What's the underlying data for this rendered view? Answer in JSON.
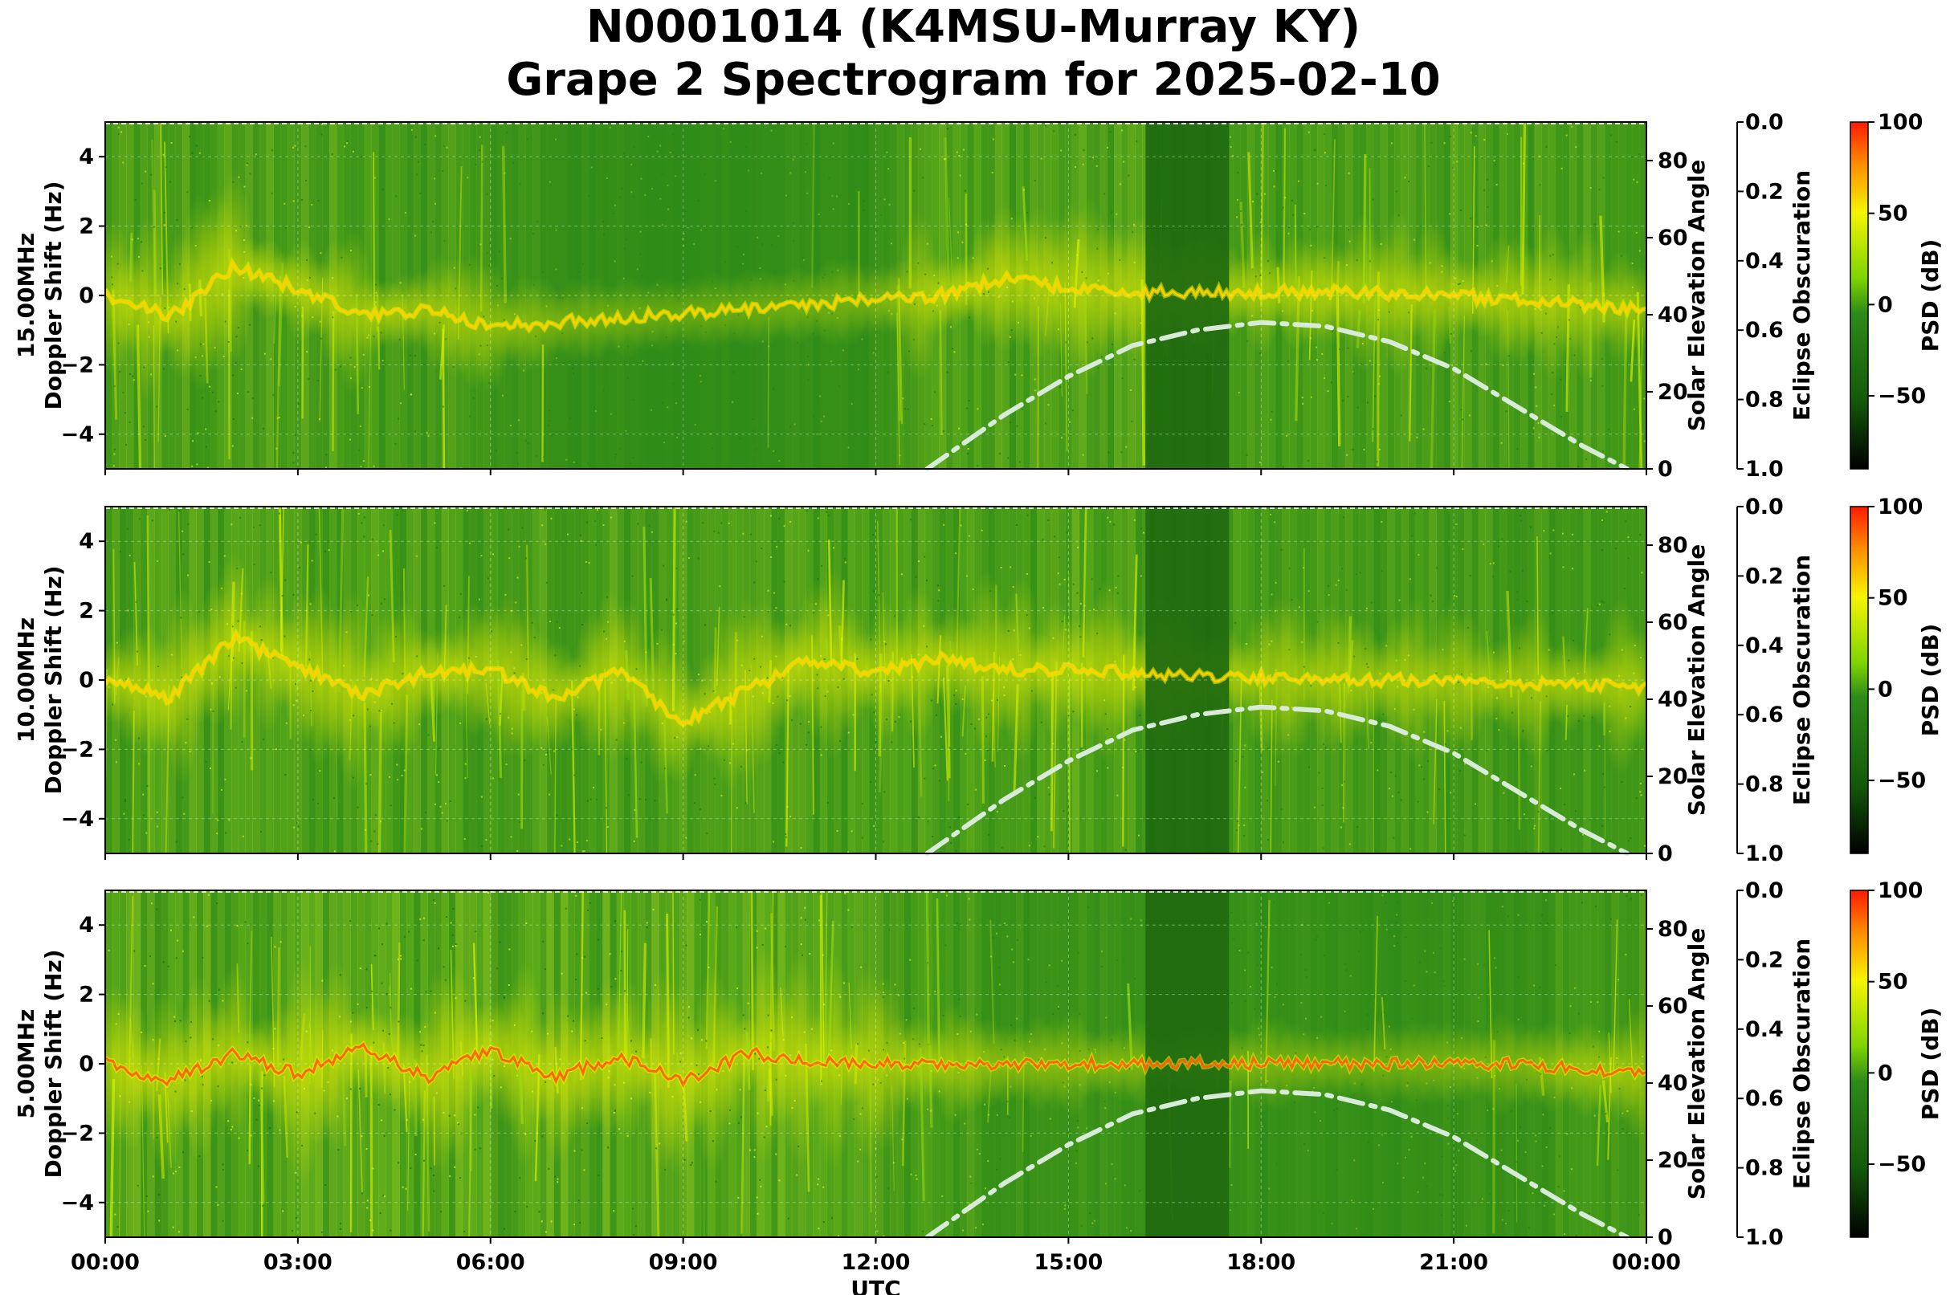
{
  "title_line1": "N0001014 (K4MSU-Murray KY)",
  "title_line2": "Grape 2 Spectrogram for 2025-02-10",
  "colors": {
    "background_green": "#2e8b18",
    "dark_band": "#1f6a0f",
    "yellow": "#f0f000",
    "red": "#ff2000",
    "solar_curve": "#d8ead8"
  },
  "chart_data": {
    "type": "heatmap",
    "xlabel": "UTC",
    "x_ticks": [
      "00:00",
      "03:00",
      "06:00",
      "09:00",
      "12:00",
      "15:00",
      "18:00",
      "21:00",
      "00:00"
    ],
    "xlim_hours": [
      0,
      24
    ],
    "ylim": [
      -5,
      5
    ],
    "y_ticks": [
      "4",
      "2",
      "0",
      "−2",
      "−4"
    ],
    "solar_axis": {
      "label": "Solar Elevation Angle",
      "ticks": [
        "0",
        "20",
        "40",
        "60",
        "80"
      ],
      "ylim": [
        0,
        90
      ]
    },
    "eclipse_axis": {
      "label": "Eclipse Obscuration",
      "ticks": [
        "0.0",
        "0.2",
        "0.4",
        "0.6",
        "0.8",
        "1.0"
      ],
      "ylim": [
        1,
        0
      ]
    },
    "colorbar": {
      "label": "PSD (dB)",
      "ticks": [
        "100",
        "50",
        "0",
        "−50"
      ],
      "range": [
        -90,
        100
      ]
    },
    "dark_band_hours": [
      16.2,
      17.5
    ],
    "solar_elevation": [
      [
        12.8,
        0
      ],
      [
        14,
        14
      ],
      [
        15,
        24
      ],
      [
        16,
        32
      ],
      [
        17,
        36
      ],
      [
        18,
        38
      ],
      [
        19,
        37
      ],
      [
        20,
        33
      ],
      [
        21,
        26
      ],
      [
        22,
        16
      ],
      [
        23,
        6
      ],
      [
        23.7,
        0
      ]
    ],
    "panels": [
      {
        "name": "15.00MHz",
        "ylabel_line1": "15.00MHz",
        "ylabel_line2": "Doppler Shift (Hz)",
        "activity": [
          [
            0,
            0.55
          ],
          [
            2,
            0.6
          ],
          [
            4,
            0.5
          ],
          [
            6,
            0.35
          ],
          [
            7,
            0.15
          ],
          [
            9,
            0.05
          ],
          [
            12,
            0.15
          ],
          [
            13,
            0.6
          ],
          [
            15,
            0.55
          ],
          [
            16.2,
            0.5
          ],
          [
            17.5,
            0.5
          ],
          [
            19,
            0.55
          ],
          [
            22,
            0.5
          ],
          [
            24,
            0.4
          ]
        ],
        "trace": [
          [
            0,
            0
          ],
          [
            1,
            -0.6
          ],
          [
            2,
            0.8
          ],
          [
            3,
            0.2
          ],
          [
            4,
            -0.6
          ],
          [
            5,
            -0.4
          ],
          [
            6,
            -0.9
          ],
          [
            6.8,
            -0.8
          ],
          [
            13,
            0.0
          ],
          [
            14,
            0.5
          ],
          [
            15,
            0.2
          ],
          [
            16.2,
            0.1
          ],
          [
            17.5,
            0.1
          ],
          [
            19,
            0.1
          ],
          [
            21,
            0.0
          ],
          [
            24,
            -0.4
          ]
        ]
      },
      {
        "name": "10.00MHz",
        "ylabel_line1": "10.00MHz",
        "ylabel_line2": "Doppler Shift (Hz)",
        "activity": [
          [
            0,
            0.55
          ],
          [
            3,
            0.6
          ],
          [
            6,
            0.55
          ],
          [
            9,
            0.55
          ],
          [
            12,
            0.6
          ],
          [
            15,
            0.6
          ],
          [
            16.2,
            0.55
          ],
          [
            17.5,
            0.45
          ],
          [
            20,
            0.45
          ],
          [
            22,
            0.45
          ],
          [
            24,
            0.55
          ]
        ],
        "trace": [
          [
            0,
            0
          ],
          [
            1,
            -0.5
          ],
          [
            2,
            1.2
          ],
          [
            3,
            0.4
          ],
          [
            4,
            -0.4
          ],
          [
            5,
            0.2
          ],
          [
            6,
            0.3
          ],
          [
            7,
            -0.5
          ],
          [
            8,
            0.2
          ],
          [
            9,
            -1.2
          ],
          [
            10,
            -0.3
          ],
          [
            11,
            0.6
          ],
          [
            12,
            0.2
          ],
          [
            13,
            0.6
          ],
          [
            14,
            0.3
          ],
          [
            15,
            0.3
          ],
          [
            16.2,
            0.2
          ],
          [
            17.5,
            0.1
          ],
          [
            20,
            0.0
          ],
          [
            24,
            -0.2
          ]
        ]
      },
      {
        "name": "5.00MHz",
        "ylabel_line1": "5.00MHz",
        "ylabel_line2": "Doppler Shift (Hz)",
        "activity": [
          [
            0,
            0.7
          ],
          [
            3,
            0.75
          ],
          [
            6,
            0.75
          ],
          [
            9,
            0.75
          ],
          [
            11.5,
            0.7
          ],
          [
            12,
            0.5
          ],
          [
            13,
            0.5
          ],
          [
            14,
            0.3
          ],
          [
            15,
            0.25
          ],
          [
            16,
            0.2
          ],
          [
            20,
            0.12
          ],
          [
            22,
            0.2
          ],
          [
            23,
            0.4
          ],
          [
            24,
            0.5
          ]
        ],
        "trace": [
          [
            0,
            0
          ],
          [
            1,
            -0.5
          ],
          [
            2,
            0.3
          ],
          [
            3,
            -0.3
          ],
          [
            4,
            0.5
          ],
          [
            5,
            -0.4
          ],
          [
            6,
            0.4
          ],
          [
            7,
            -0.4
          ],
          [
            8,
            0.2
          ],
          [
            9,
            -0.5
          ],
          [
            10,
            0.3
          ],
          [
            11,
            0.1
          ],
          [
            12,
            0.0
          ],
          [
            16,
            0.0
          ],
          [
            22,
            0.0
          ],
          [
            24,
            -0.3
          ]
        ]
      }
    ]
  }
}
